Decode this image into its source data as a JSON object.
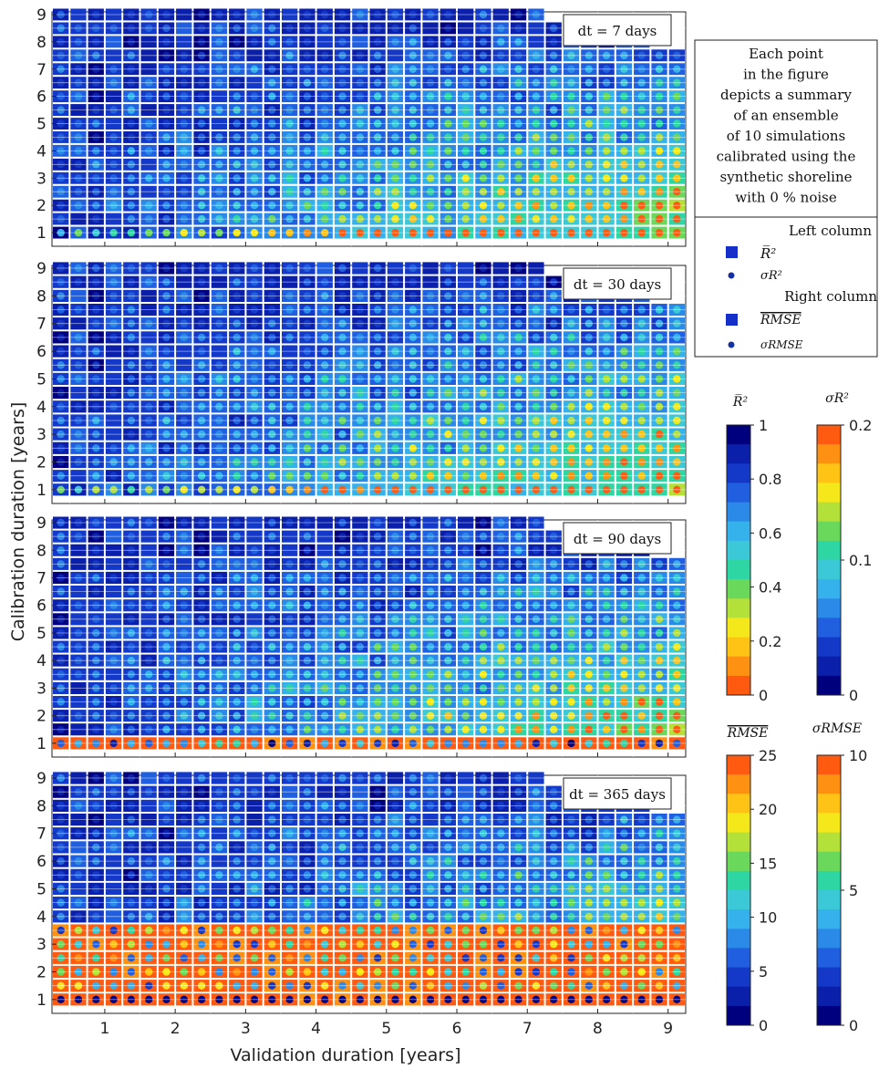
{
  "chart_data": {
    "type": "heatmap",
    "xlabel": "Validation duration [years]",
    "ylabel": "Calibration duration [years]",
    "x_ticks": [
      "1",
      "2",
      "3",
      "4",
      "5",
      "6",
      "7",
      "8",
      "9"
    ],
    "y_ticks": [
      "1",
      "2",
      "3",
      "4",
      "5",
      "6",
      "7",
      "8",
      "9"
    ],
    "xlim": [
      0.25,
      9.25
    ],
    "ylim": [
      0.5,
      9.1
    ],
    "grid": "on",
    "grid_step_years": 0.5,
    "panels": [
      {
        "label": "dt = 7 days",
        "pattern": "dt7"
      },
      {
        "label": "dt = 30 days",
        "pattern": "dt30"
      },
      {
        "label": "dt = 90 days",
        "pattern": "dt90"
      },
      {
        "label": "dt = 365 days",
        "pattern": "dt365"
      }
    ],
    "note": [
      "Each point",
      "in the figure",
      "depicts a summary",
      "of an ensemble",
      "of 10 simulations",
      "calibrated using the",
      "synthetic shoreline",
      "with 0 % noise"
    ],
    "legend": {
      "left_column": "Left column",
      "right_column": "Right column",
      "items": [
        "R̄²",
        "σ_R²",
        "RMSE (overline)",
        "σ_RMSE"
      ],
      "marker_color": "#1530c8"
    },
    "colorbars": [
      {
        "label": "R² (mean)",
        "ticks": [
          "0",
          "0.2",
          "0.4",
          "0.6",
          "0.8",
          "1"
        ],
        "range": [
          0,
          1
        ],
        "reversed": true
      },
      {
        "label": "σ_R²",
        "ticks": [
          "0",
          "0.1",
          "0.2"
        ],
        "range": [
          0,
          0.2
        ],
        "reversed": false
      },
      {
        "label": "RMSE (mean)",
        "ticks": [
          "0",
          "5",
          "10",
          "15",
          "20",
          "25"
        ],
        "range": [
          0,
          25
        ],
        "reversed": false
      },
      {
        "label": "σ_RMSE",
        "ticks": [
          "0",
          "5",
          "10"
        ],
        "range": [
          0,
          10
        ],
        "reversed": false
      }
    ],
    "colormap": [
      "#00007f",
      "#0a1faa",
      "#1439c8",
      "#1f5fe0",
      "#2b8ae8",
      "#35b1ec",
      "#3bc9d8",
      "#2ed6a4",
      "#6ad85a",
      "#b4e03a",
      "#f5e81a",
      "#ffc316",
      "#ff9112",
      "#ff5a10"
    ]
  }
}
